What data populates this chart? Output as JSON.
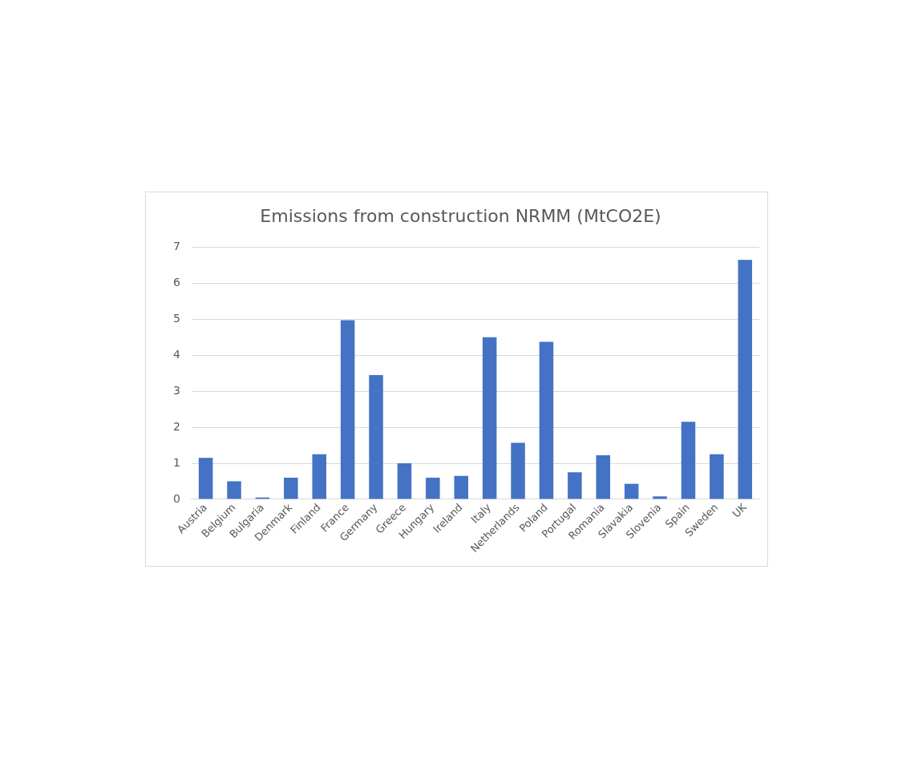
{
  "chart_data": {
    "type": "bar",
    "title": "Emissions from construction NRMM (MtCO2E)",
    "categories": [
      "Austria",
      "Belgium",
      "Bulgaria",
      "Denmark",
      "Finland",
      "France",
      "Germany",
      "Greece",
      "Hungary",
      "Ireland",
      "Italy",
      "Netherlands",
      "Poland",
      "Portugal",
      "Romania",
      "Slavakia",
      "Slovenia",
      "Spain",
      "Sweden",
      "UK"
    ],
    "values": [
      1.15,
      0.5,
      0.05,
      0.6,
      1.25,
      4.97,
      3.45,
      1.0,
      0.6,
      0.65,
      4.5,
      1.57,
      4.37,
      0.75,
      1.22,
      0.43,
      0.08,
      2.15,
      1.25,
      6.65
    ],
    "color": "#4472c4",
    "ylim": [
      0,
      7
    ],
    "yticks": [
      0,
      1,
      2,
      3,
      4,
      5,
      6,
      7
    ],
    "grid": "y"
  }
}
